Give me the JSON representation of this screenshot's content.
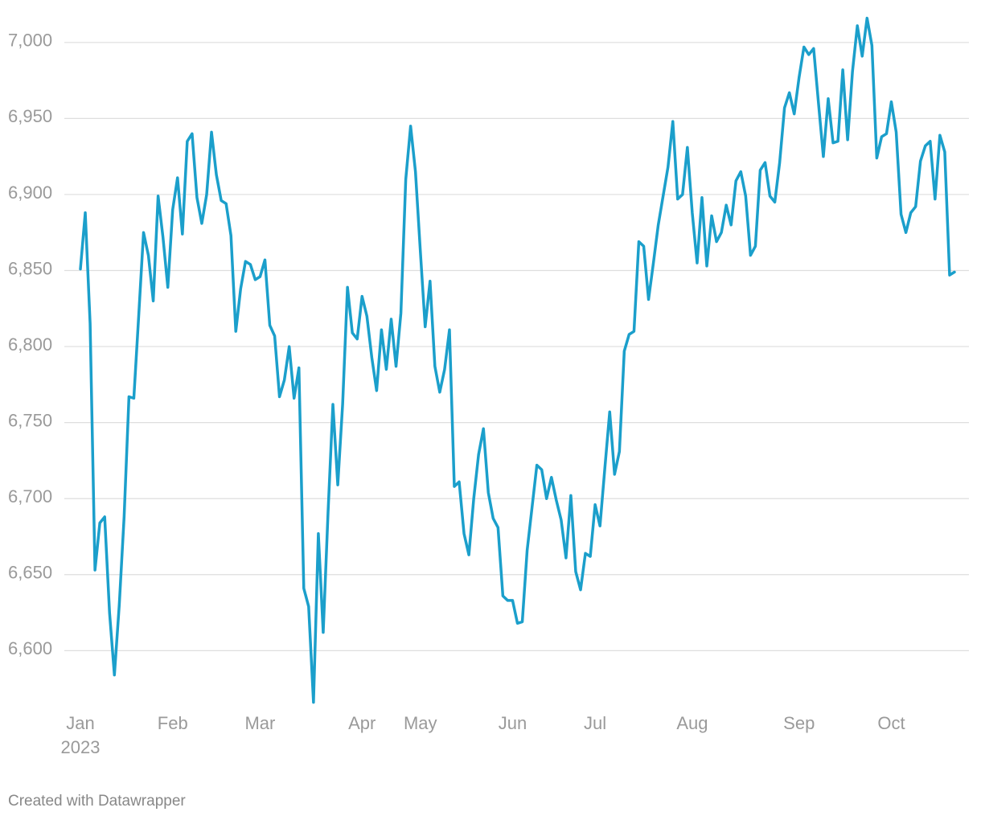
{
  "chart_data": {
    "type": "line",
    "categories": [
      "Jan",
      null,
      null,
      null,
      null,
      null,
      null,
      null,
      null,
      null,
      null,
      null,
      null,
      null,
      null,
      null,
      null,
      null,
      null,
      "Feb",
      null,
      null,
      null,
      null,
      null,
      null,
      null,
      null,
      null,
      null,
      null,
      null,
      null,
      null,
      null,
      null,
      null,
      "Mar",
      null,
      null,
      null,
      null,
      null,
      null,
      null,
      null,
      null,
      null,
      null,
      null,
      null,
      null,
      null,
      null,
      null,
      null,
      null,
      null,
      "Apr",
      null,
      null,
      null,
      null,
      null,
      null,
      null,
      null,
      null,
      null,
      null,
      "May",
      null,
      null,
      null,
      null,
      null,
      null,
      null,
      null,
      null,
      null,
      null,
      null,
      null,
      null,
      null,
      null,
      null,
      null,
      "Jun",
      null,
      null,
      null,
      null,
      null,
      null,
      null,
      null,
      null,
      null,
      null,
      null,
      null,
      null,
      null,
      null,
      "Jul",
      null,
      null,
      null,
      null,
      null,
      null,
      null,
      null,
      null,
      null,
      null,
      null,
      null,
      null,
      null,
      null,
      null,
      null,
      null,
      "Aug",
      null,
      null,
      null,
      null,
      null,
      null,
      null,
      null,
      null,
      null,
      null,
      null,
      null,
      null,
      null,
      null,
      null,
      null,
      null,
      null,
      null,
      "Sep",
      null,
      null,
      null,
      null,
      null,
      null,
      null,
      null,
      null,
      null,
      null,
      null,
      null,
      null,
      null,
      null,
      null,
      null,
      "Oct",
      null,
      null,
      null,
      null,
      null,
      null,
      null,
      null,
      null,
      null,
      null,
      null,
      null
    ],
    "year_label": "2023",
    "series": [
      {
        "color": "#1b9fcb",
        "values": [
          6851,
          6888,
          6815,
          6653,
          6684,
          6688,
          6625,
          6584,
          6630,
          6688,
          6767,
          6766,
          6820,
          6875,
          6860,
          6830,
          6899,
          6872,
          6839,
          6890,
          6911,
          6874,
          6935,
          6940,
          6898,
          6881,
          6900,
          6941,
          6913,
          6896,
          6894,
          6873,
          6810,
          6838,
          6856,
          6854,
          6844,
          6846,
          6857,
          6814,
          6807,
          6767,
          6778,
          6800,
          6766,
          6786,
          6641,
          6629,
          6566,
          6677,
          6612,
          6691,
          6762,
          6709,
          6762,
          6839,
          6809,
          6805,
          6833,
          6820,
          6793,
          6771,
          6811,
          6785,
          6818,
          6787,
          6822,
          6910,
          6945,
          6915,
          6863,
          6813,
          6843,
          6787,
          6770,
          6785,
          6811,
          6708,
          6711,
          6677,
          6663,
          6700,
          6729,
          6746,
          6704,
          6687,
          6681,
          6636,
          6633,
          6633,
          6618,
          6619,
          6666,
          6694,
          6722,
          6719,
          6700,
          6714,
          6699,
          6686,
          6661,
          6702,
          6652,
          6640,
          6664,
          6662,
          6696,
          6682,
          6720,
          6757,
          6716,
          6731,
          6797,
          6808,
          6810,
          6869,
          6866,
          6831,
          6855,
          6880,
          6899,
          6918,
          6948,
          6897,
          6900,
          6931,
          6888,
          6855,
          6898,
          6853,
          6886,
          6869,
          6875,
          6893,
          6880,
          6909,
          6915,
          6899,
          6860,
          6866,
          6916,
          6921,
          6899,
          6895,
          6921,
          6957,
          6967,
          6953,
          6977,
          6997,
          6992,
          6996,
          6960,
          6925,
          6963,
          6934,
          6935,
          6982,
          6936,
          6981,
          7011,
          6991,
          7016,
          6998,
          6924,
          6938,
          6940,
          6961,
          6941,
          6887,
          6875,
          6888,
          6892,
          6922,
          6932,
          6935,
          6897,
          6939,
          6928,
          6847,
          6849
        ]
      }
    ],
    "ylim": [
      6560,
      7020
    ],
    "yticks": [
      {
        "value": 6600,
        "label": "6,600"
      },
      {
        "value": 6650,
        "label": "6,650"
      },
      {
        "value": 6700,
        "label": "6,700"
      },
      {
        "value": 6750,
        "label": "6,750"
      },
      {
        "value": 6800,
        "label": "6,800"
      },
      {
        "value": 6850,
        "label": "6,850"
      },
      {
        "value": 6900,
        "label": "6,900"
      },
      {
        "value": 6950,
        "label": "6,950"
      },
      {
        "value": 7000,
        "label": "7,000"
      }
    ],
    "grid": true,
    "footer": "Created with Datawrapper"
  }
}
